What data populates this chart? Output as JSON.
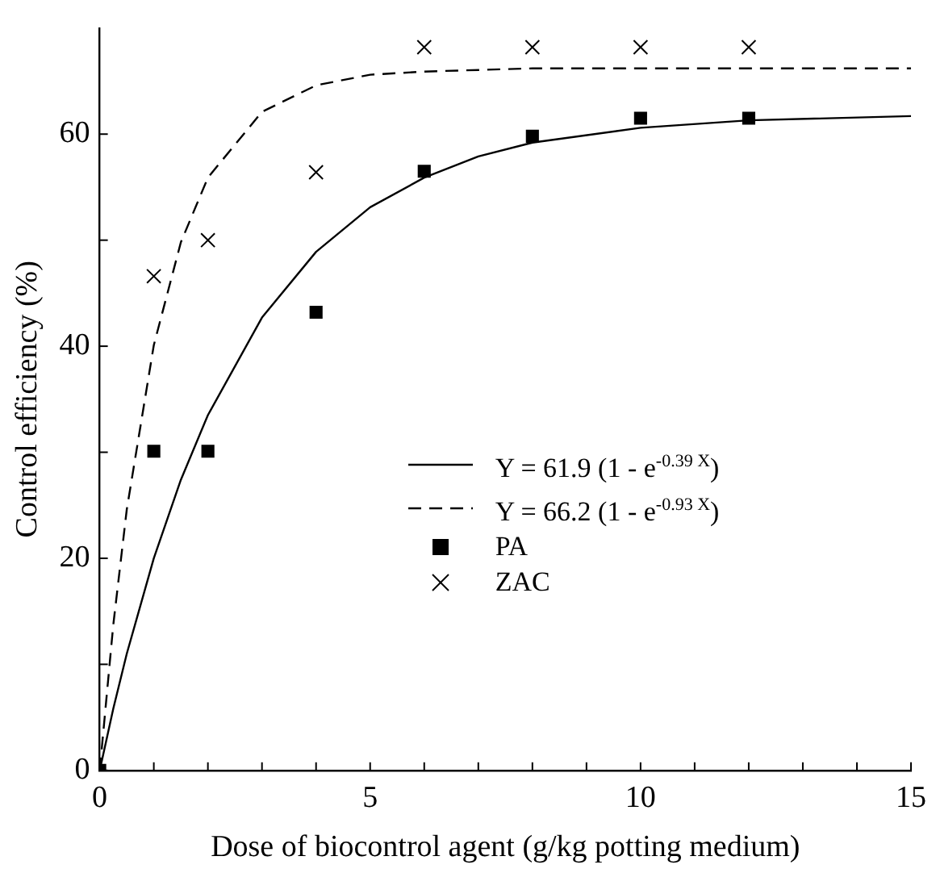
{
  "chart_data": {
    "type": "scatter",
    "xlabel": "Dose of biocontrol agent (g/kg potting medium)",
    "ylabel": "Control efficiency (%)",
    "xlim": [
      0,
      15
    ],
    "xticks": [
      0,
      {
        "value": 1,
        "label": null
      },
      {
        "value": 2,
        "label": null
      },
      {
        "value": 3,
        "label": null
      },
      {
        "value": 4,
        "label": null
      },
      5,
      {
        "value": 6,
        "label": null
      },
      {
        "value": 7,
        "label": null
      },
      {
        "value": 8,
        "label": null
      },
      {
        "value": 9,
        "label": null
      },
      10,
      {
        "value": 11,
        "label": null
      },
      {
        "value": 12,
        "label": null
      },
      {
        "value": 13,
        "label": null
      },
      {
        "value": 14,
        "label": null
      },
      15
    ],
    "ylim": [
      0,
      70
    ],
    "yticks": [
      0,
      {
        "value": 10,
        "label": null
      },
      20,
      {
        "value": 30,
        "label": null
      },
      40,
      {
        "value": 50,
        "label": null
      },
      60
    ],
    "grid": false,
    "legend": "right",
    "series": [
      {
        "name": "Y = 61.9 (1 - e$^{-0.39 X}$)",
        "type": "line",
        "color": "#000000",
        "marker": "none",
        "line_style": "solid",
        "x": [
          0,
          0.25,
          0.5,
          1,
          1.5,
          2,
          3,
          4,
          5,
          6,
          7,
          8,
          10,
          12,
          15
        ],
        "values": [
          0,
          5.8,
          11.0,
          20.0,
          27.4,
          33.5,
          42.7,
          48.9,
          53.1,
          55.9,
          57.9,
          59.2,
          60.6,
          61.3,
          61.7
        ]
      },
      {
        "name": "Y = 66.2 (1 - e$^{-0.93 X}$)",
        "type": "line",
        "color": "#000000",
        "marker": "none",
        "line_style": "dashed",
        "x": [
          0,
          0.25,
          0.5,
          1,
          1.5,
          2,
          3,
          4,
          5,
          6,
          8,
          15
        ],
        "values": [
          0,
          13.7,
          24.6,
          40.1,
          49.8,
          55.9,
          62.1,
          64.6,
          65.6,
          65.9,
          66.2,
          66.2
        ]
      },
      {
        "name": "PA",
        "type": "scatter",
        "color": "#000000",
        "marker": "square",
        "x": [
          0,
          1,
          2,
          4,
          6,
          8,
          10,
          12
        ],
        "values": [
          0,
          30.1,
          30.1,
          43.2,
          56.5,
          59.8,
          61.5,
          61.5
        ]
      },
      {
        "name": "ZAC",
        "type": "scatter",
        "color": "#000000",
        "marker": "cross",
        "x": [
          1,
          2,
          4,
          6,
          8,
          10,
          12
        ],
        "values": [
          46.6,
          50.0,
          56.4,
          68.2,
          68.2,
          68.2,
          68.2
        ]
      }
    ]
  }
}
